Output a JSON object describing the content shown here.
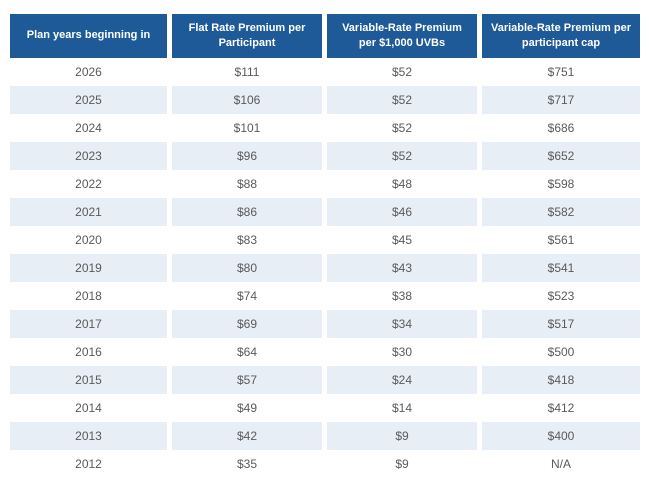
{
  "colors": {
    "header_bg": "#1e5a97",
    "header_text": "#ffffff",
    "stripe_bg": "#e8eef5",
    "row_bg": "#ffffff",
    "cell_text": "#595a5c"
  },
  "chart_data": {
    "type": "table",
    "columns": [
      "Plan years beginning in",
      "Flat Rate Premium per Participant",
      "Variable-Rate Premium per $1,000 UVBs",
      "Variable-Rate Premium per participant cap"
    ],
    "rows": [
      [
        "2026",
        "$111",
        "$52",
        "$751"
      ],
      [
        "2025",
        "$106",
        "$52",
        "$717"
      ],
      [
        "2024",
        "$101",
        "$52",
        "$686"
      ],
      [
        "2023",
        "$96",
        "$52",
        "$652"
      ],
      [
        "2022",
        "$88",
        "$48",
        "$598"
      ],
      [
        "2021",
        "$86",
        "$46",
        "$582"
      ],
      [
        "2020",
        "$83",
        "$45",
        "$561"
      ],
      [
        "2019",
        "$80",
        "$43",
        "$541"
      ],
      [
        "2018",
        "$74",
        "$38",
        "$523"
      ],
      [
        "2017",
        "$69",
        "$34",
        "$517"
      ],
      [
        "2016",
        "$64",
        "$30",
        "$500"
      ],
      [
        "2015",
        "$57",
        "$24",
        "$418"
      ],
      [
        "2014",
        "$49",
        "$14",
        "$412"
      ],
      [
        "2013",
        "$42",
        "$9",
        "$400"
      ],
      [
        "2012",
        "$35",
        "$9",
        "N/A"
      ]
    ]
  }
}
